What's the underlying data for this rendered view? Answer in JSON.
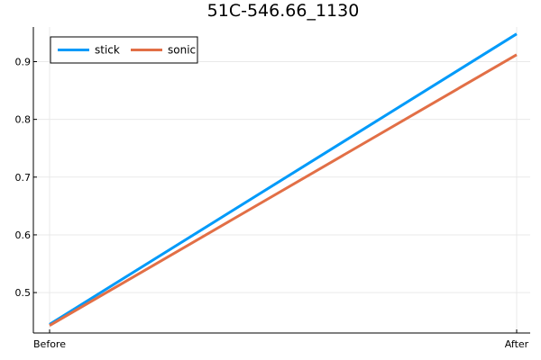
{
  "chart_data": {
    "type": "line",
    "title": "51C-546.66_1130",
    "xlabel": "",
    "ylabel": "",
    "categories": [
      "Before",
      "After"
    ],
    "ylim": [
      0.43,
      0.96
    ],
    "yticks": [
      0.5,
      0.6,
      0.7,
      0.8,
      0.9
    ],
    "ytick_labels": [
      "0.5",
      "0.6",
      "0.7",
      "0.8",
      "0.9"
    ],
    "grid": true,
    "legend_position": "top-left",
    "series": [
      {
        "name": "stick",
        "values": [
          0.445,
          0.948
        ],
        "color": "#009af9"
      },
      {
        "name": "sonic",
        "values": [
          0.443,
          0.912
        ],
        "color": "#e26f46"
      }
    ]
  }
}
